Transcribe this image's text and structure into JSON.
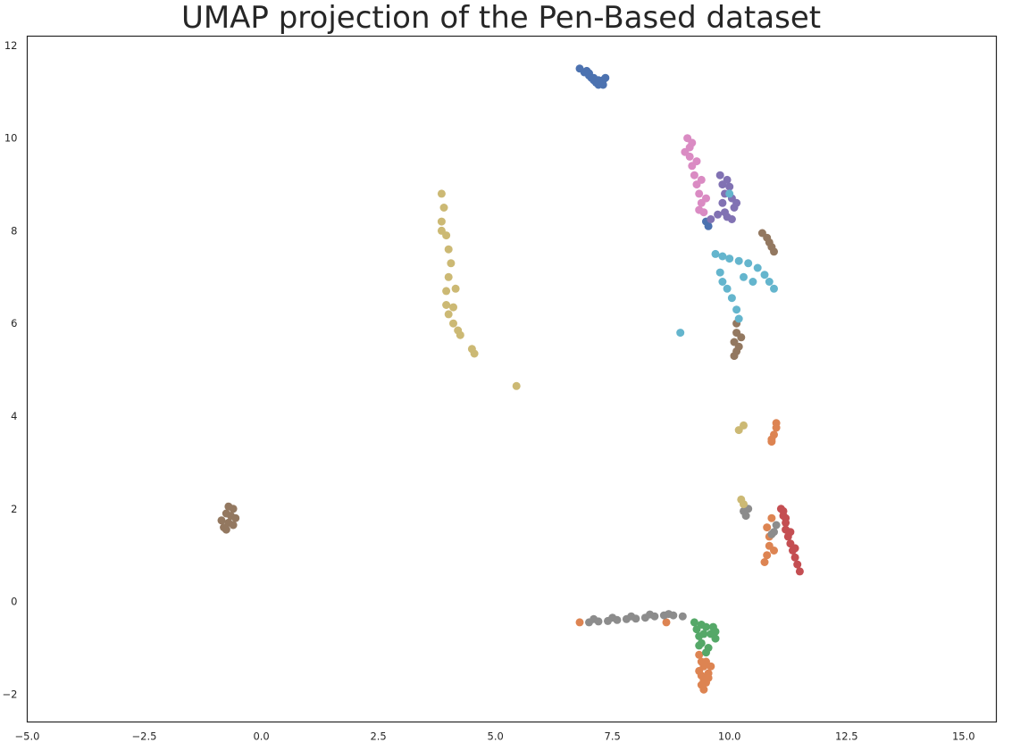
{
  "chart_data": {
    "type": "scatter",
    "title": "UMAP projection of the Pen-Based dataset",
    "xlabel": "",
    "ylabel": "",
    "xlim": [
      -5.0,
      15.7
    ],
    "ylim": [
      -2.6,
      12.2
    ],
    "grid": false,
    "legend": "none",
    "xticks": [
      "−5.0",
      "−2.5",
      "0.0",
      "2.5",
      "5.0",
      "7.5",
      "10.0",
      "12.5",
      "15.0"
    ],
    "xtick_values": [
      -5.0,
      -2.5,
      0.0,
      2.5,
      5.0,
      7.5,
      10.0,
      12.5,
      15.0
    ],
    "yticks": [
      "−2",
      "0",
      "2",
      "4",
      "6",
      "8",
      "10",
      "12"
    ],
    "ytick_values": [
      -2,
      0,
      2,
      4,
      6,
      8,
      10,
      12
    ],
    "series": [
      {
        "color": "#4c72b0",
        "points": [
          [
            6.8,
            11.5
          ],
          [
            6.9,
            11.42
          ],
          [
            7.0,
            11.35
          ],
          [
            7.05,
            11.3
          ],
          [
            7.1,
            11.25
          ],
          [
            7.15,
            11.2
          ],
          [
            7.2,
            11.15
          ],
          [
            7.25,
            11.2
          ],
          [
            7.3,
            11.25
          ],
          [
            7.0,
            11.4
          ],
          [
            7.1,
            11.3
          ],
          [
            7.2,
            11.25
          ],
          [
            6.95,
            11.45
          ],
          [
            7.3,
            11.15
          ],
          [
            7.35,
            11.3
          ],
          [
            9.55,
            8.1
          ],
          [
            9.5,
            8.2
          ]
        ]
      },
      {
        "color": "#dd8452",
        "points": [
          [
            9.35,
            -1.15
          ],
          [
            9.4,
            -1.3
          ],
          [
            9.45,
            -1.4
          ],
          [
            9.35,
            -1.5
          ],
          [
            9.4,
            -1.6
          ],
          [
            9.45,
            -1.7
          ],
          [
            9.4,
            -1.8
          ],
          [
            9.45,
            -1.9
          ],
          [
            9.5,
            -1.75
          ],
          [
            9.55,
            -1.55
          ],
          [
            9.5,
            -1.3
          ],
          [
            9.6,
            -1.4
          ],
          [
            9.55,
            -1.65
          ],
          [
            10.75,
            0.85
          ],
          [
            10.8,
            1.0
          ],
          [
            10.85,
            1.2
          ],
          [
            10.85,
            1.4
          ],
          [
            10.8,
            1.6
          ],
          [
            10.9,
            1.8
          ],
          [
            10.95,
            1.1
          ],
          [
            10.9,
            3.45
          ],
          [
            10.95,
            3.6
          ],
          [
            11.0,
            3.75
          ],
          [
            10.9,
            3.5
          ],
          [
            11.0,
            3.85
          ],
          [
            8.65,
            -0.45
          ],
          [
            6.8,
            -0.45
          ]
        ]
      },
      {
        "color": "#55a868",
        "points": [
          [
            9.25,
            -0.45
          ],
          [
            9.3,
            -0.6
          ],
          [
            9.35,
            -0.75
          ],
          [
            9.4,
            -0.9
          ],
          [
            9.5,
            -0.55
          ],
          [
            9.6,
            -0.7
          ],
          [
            9.7,
            -0.8
          ],
          [
            9.65,
            -0.55
          ],
          [
            9.45,
            -0.7
          ],
          [
            9.55,
            -1.0
          ],
          [
            9.35,
            -0.95
          ],
          [
            9.7,
            -0.65
          ],
          [
            9.5,
            -1.1
          ],
          [
            9.4,
            -0.5
          ]
        ]
      },
      {
        "color": "#c44e52",
        "points": [
          [
            11.1,
            2.0
          ],
          [
            11.15,
            1.85
          ],
          [
            11.2,
            1.7
          ],
          [
            11.2,
            1.55
          ],
          [
            11.25,
            1.4
          ],
          [
            11.3,
            1.25
          ],
          [
            11.35,
            1.1
          ],
          [
            11.4,
            0.95
          ],
          [
            11.45,
            0.8
          ],
          [
            11.5,
            0.65
          ],
          [
            11.15,
            1.95
          ],
          [
            11.3,
            1.5
          ],
          [
            11.4,
            1.15
          ],
          [
            11.2,
            1.8
          ]
        ]
      },
      {
        "color": "#8172b3",
        "points": [
          [
            9.8,
            9.2
          ],
          [
            9.85,
            9.0
          ],
          [
            9.9,
            8.8
          ],
          [
            9.85,
            8.6
          ],
          [
            9.9,
            8.4
          ],
          [
            9.95,
            8.3
          ],
          [
            10.05,
            8.25
          ],
          [
            10.1,
            8.5
          ],
          [
            10.05,
            8.7
          ],
          [
            10.0,
            8.95
          ],
          [
            9.75,
            8.35
          ],
          [
            9.6,
            8.25
          ],
          [
            9.95,
            9.1
          ],
          [
            10.15,
            8.6
          ]
        ]
      },
      {
        "color": "#937860",
        "points": [
          [
            -0.85,
            1.75
          ],
          [
            -0.8,
            1.6
          ],
          [
            -0.75,
            1.55
          ],
          [
            -0.7,
            1.7
          ],
          [
            -0.65,
            1.85
          ],
          [
            -0.6,
            2.0
          ],
          [
            -0.7,
            2.05
          ],
          [
            -0.55,
            1.8
          ],
          [
            -0.75,
            1.9
          ],
          [
            -0.6,
            1.65
          ],
          [
            10.7,
            7.95
          ],
          [
            10.8,
            7.85
          ],
          [
            10.85,
            7.75
          ],
          [
            10.9,
            7.65
          ],
          [
            10.95,
            7.55
          ],
          [
            10.15,
            6.0
          ],
          [
            10.15,
            5.8
          ],
          [
            10.1,
            5.6
          ],
          [
            10.15,
            5.4
          ],
          [
            10.1,
            5.3
          ],
          [
            10.2,
            5.5
          ],
          [
            10.25,
            5.7
          ]
        ]
      },
      {
        "color": "#da8bc3",
        "points": [
          [
            9.1,
            10.0
          ],
          [
            9.15,
            9.8
          ],
          [
            9.15,
            9.6
          ],
          [
            9.2,
            9.4
          ],
          [
            9.25,
            9.2
          ],
          [
            9.3,
            9.0
          ],
          [
            9.35,
            8.8
          ],
          [
            9.4,
            8.6
          ],
          [
            9.45,
            8.4
          ],
          [
            9.2,
            9.9
          ],
          [
            9.3,
            9.5
          ],
          [
            9.4,
            9.1
          ],
          [
            9.05,
            9.7
          ],
          [
            9.5,
            8.7
          ],
          [
            9.35,
            8.45
          ]
        ]
      },
      {
        "color": "#8c8c8c",
        "points": [
          [
            7.0,
            -0.45
          ],
          [
            7.2,
            -0.43
          ],
          [
            7.4,
            -0.42
          ],
          [
            7.6,
            -0.4
          ],
          [
            7.8,
            -0.38
          ],
          [
            8.0,
            -0.37
          ],
          [
            8.2,
            -0.35
          ],
          [
            8.4,
            -0.32
          ],
          [
            8.6,
            -0.3
          ],
          [
            8.8,
            -0.3
          ],
          [
            9.0,
            -0.32
          ],
          [
            7.1,
            -0.38
          ],
          [
            7.5,
            -0.35
          ],
          [
            7.9,
            -0.32
          ],
          [
            8.3,
            -0.28
          ],
          [
            8.7,
            -0.27
          ],
          [
            10.35,
            1.85
          ],
          [
            10.4,
            2.0
          ],
          [
            10.3,
            1.95
          ],
          [
            10.95,
            1.5
          ],
          [
            11.0,
            1.65
          ],
          [
            10.9,
            1.45
          ]
        ]
      },
      {
        "color": "#ccb974",
        "points": [
          [
            3.85,
            8.8
          ],
          [
            3.9,
            8.5
          ],
          [
            3.85,
            8.2
          ],
          [
            3.95,
            7.9
          ],
          [
            4.0,
            7.6
          ],
          [
            4.05,
            7.3
          ],
          [
            4.0,
            7.0
          ],
          [
            3.95,
            6.7
          ],
          [
            3.95,
            6.4
          ],
          [
            4.0,
            6.2
          ],
          [
            4.1,
            6.0
          ],
          [
            4.2,
            5.85
          ],
          [
            4.25,
            5.75
          ],
          [
            4.1,
            6.35
          ],
          [
            3.85,
            8.0
          ],
          [
            4.15,
            6.75
          ],
          [
            4.5,
            5.45
          ],
          [
            4.55,
            5.35
          ],
          [
            5.45,
            4.65
          ],
          [
            10.2,
            3.7
          ],
          [
            10.3,
            3.8
          ],
          [
            10.25,
            2.2
          ],
          [
            10.3,
            2.1
          ]
        ]
      },
      {
        "color": "#64b5cd",
        "points": [
          [
            9.7,
            7.5
          ],
          [
            9.85,
            7.45
          ],
          [
            10.0,
            7.4
          ],
          [
            10.2,
            7.35
          ],
          [
            10.4,
            7.3
          ],
          [
            10.6,
            7.2
          ],
          [
            10.75,
            7.05
          ],
          [
            10.85,
            6.9
          ],
          [
            10.95,
            6.75
          ],
          [
            9.8,
            7.1
          ],
          [
            9.85,
            6.9
          ],
          [
            9.95,
            6.75
          ],
          [
            10.05,
            6.55
          ],
          [
            10.15,
            6.3
          ],
          [
            10.2,
            6.1
          ],
          [
            10.5,
            6.9
          ],
          [
            10.3,
            7.0
          ],
          [
            10.0,
            8.8
          ],
          [
            8.95,
            5.8
          ]
        ]
      }
    ]
  }
}
